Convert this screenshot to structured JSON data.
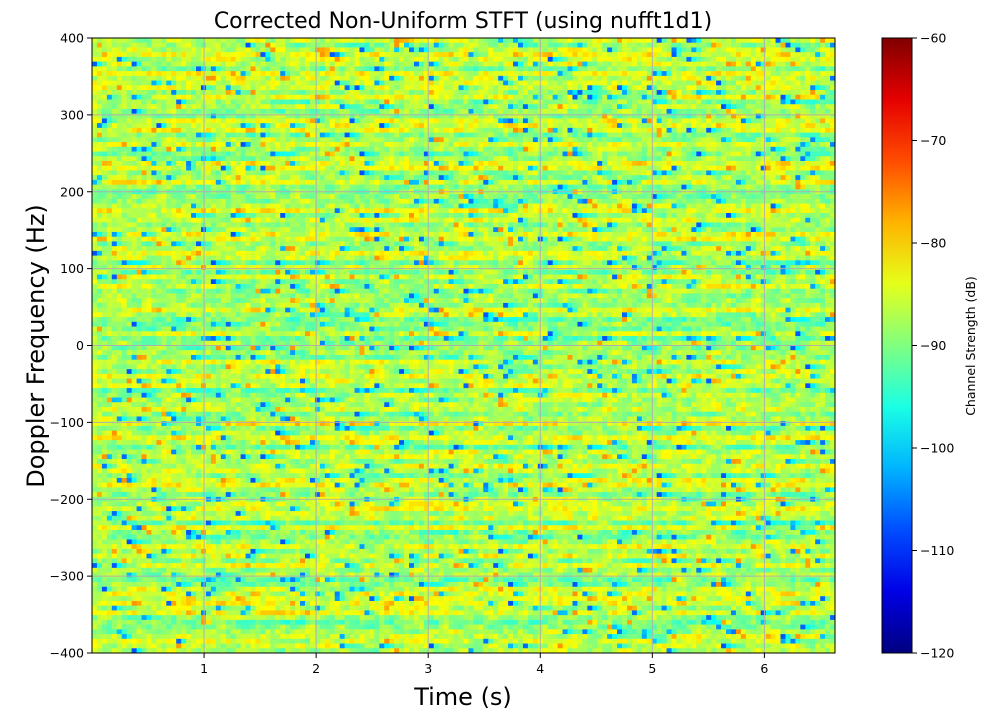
{
  "chart_data": {
    "type": "heatmap",
    "title": "Corrected Non-Uniform STFT (using nufft1d1)",
    "xlabel": "Time (s)",
    "ylabel": "Doppler Frequency (Hz)",
    "xlim": [
      0.0,
      6.63
    ],
    "ylim": [
      -400,
      400
    ],
    "xticks": [
      1,
      2,
      3,
      4,
      5,
      6
    ],
    "yticks": [
      -400,
      -300,
      -200,
      -100,
      0,
      100,
      200,
      300,
      400
    ],
    "grid": true,
    "colormap": "jet",
    "colorbar": {
      "label": "Channel Strength (dB)",
      "range": [
        -120,
        -60
      ],
      "ticks": [
        -120,
        -110,
        -100,
        -90,
        -80,
        -70,
        -60
      ]
    },
    "value_distribution": {
      "typical_range_db": [
        -95,
        -78
      ],
      "dominant_colors": [
        "#f5f000",
        "#80ff80",
        "#00e0ff"
      ],
      "sparse_min_db": -108,
      "sparse_max_db": -75
    }
  }
}
